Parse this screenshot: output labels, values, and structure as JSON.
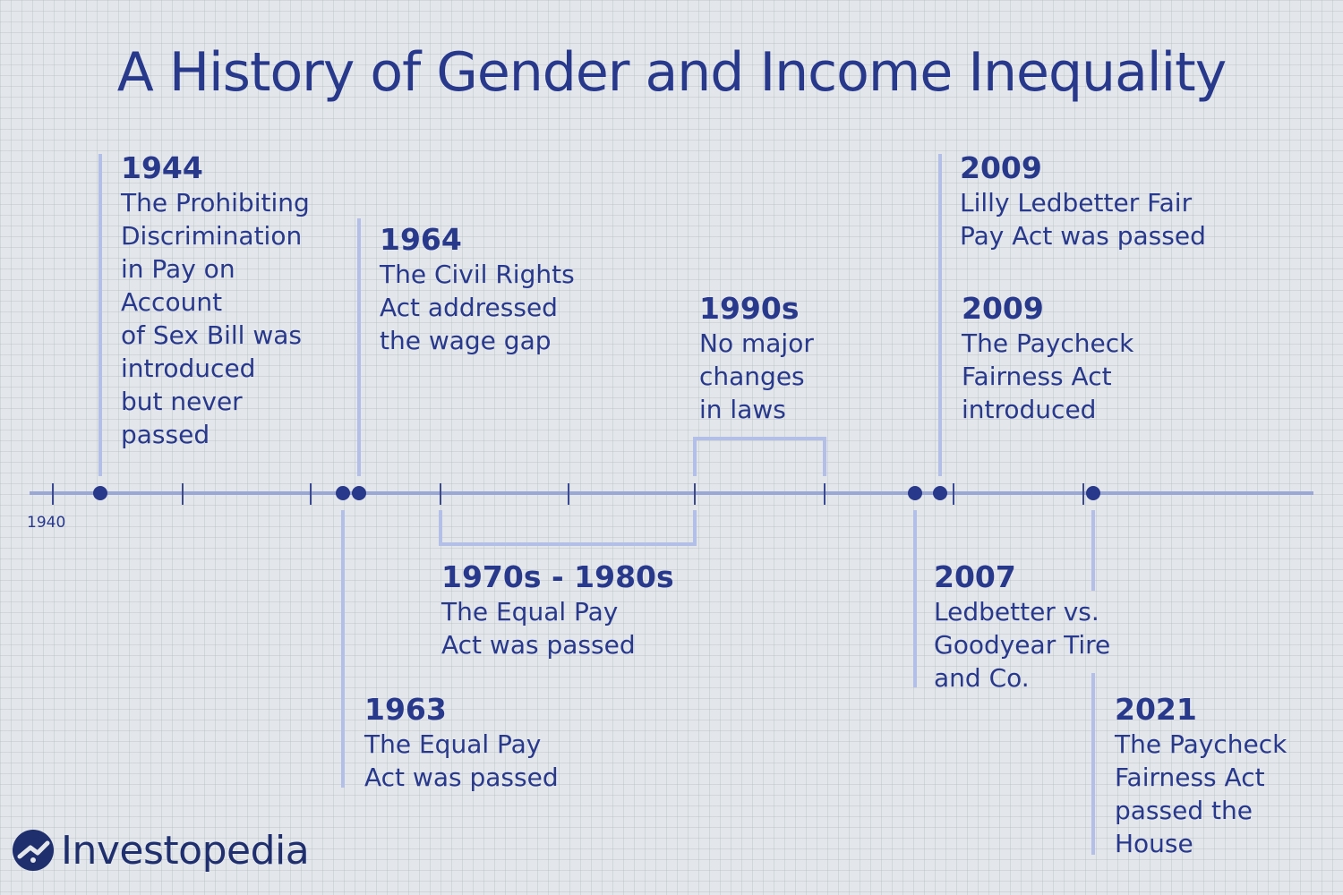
{
  "title": "A History of Gender and Income Inequality",
  "start_label": "1940",
  "colors": {
    "text": "#28388a",
    "line": "#b3bfe6",
    "axis": "#9ba7d4",
    "dot": "#28388a",
    "background": "#e3e6ea"
  },
  "events": [
    {
      "year": "1944",
      "description": "The Prohibiting\nDiscrimination\nin Pay on\nAccount\nof Sex Bill was\nintroduced\nbut never\npassed"
    },
    {
      "year": "1964",
      "description": "The Civil Rights\nAct addressed\nthe wage gap"
    },
    {
      "year": "1990s",
      "description": "No major\nchanges\nin laws"
    },
    {
      "year": "2009",
      "description": "Lilly Ledbetter Fair\nPay Act was passed"
    },
    {
      "year": "2009",
      "description": "The Paycheck\nFairness Act\nintroduced"
    },
    {
      "year": "1970s - 1980s",
      "description": "The Equal Pay\nAct was passed"
    },
    {
      "year": "1963",
      "description": "The Equal Pay\nAct was passed"
    },
    {
      "year": "2007",
      "description": "Ledbetter vs.\nGoodyear Tire\nand Co."
    },
    {
      "year": "2021",
      "description": "The Paycheck\nFairness Act\npassed the\nHouse"
    }
  ],
  "brand": {
    "name": "Investopedia",
    "icon": "investopedia-logo-icon"
  }
}
